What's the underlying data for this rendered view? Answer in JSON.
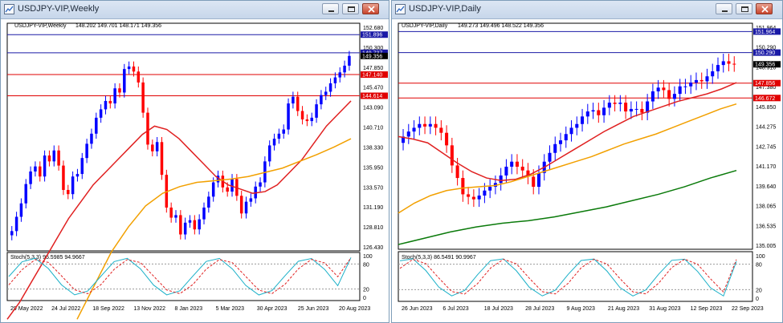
{
  "windows": [
    {
      "title": "USDJPY-VIP,Weekly",
      "info_symbol": "USDJPY-VIP,Weekly",
      "info_ohlc": "148.202 149.701 148.171 149.356",
      "stoch_label": "Stoch(5,3,3) 95.5985 94.9667",
      "price_ticks": [
        "152.680",
        "150.300",
        "147.850",
        "145.470",
        "143.090",
        "140.710",
        "138.330",
        "135.950",
        "133.570",
        "131.190",
        "128.810",
        "126.430"
      ],
      "price_min": 126.43,
      "price_max": 152.68,
      "stoch_ticks": [
        "100",
        "80",
        "20",
        "0"
      ],
      "date_ticks": [
        "29 May 2022",
        "24 Jul 2022",
        "18 Sep 2022",
        "13 Nov 2022",
        "8 Jan 2023",
        "5 Mar 2023",
        "30 Apr 2023",
        "25 Jun 2023",
        "20 Aug 2023"
      ],
      "levels": [
        {
          "value": 151.896,
          "label": "151.896",
          "color": "#1a1aa6"
        },
        {
          "value": 149.737,
          "label": "149.737",
          "color": "#1a1aa6"
        },
        {
          "value": 147.14,
          "label": "147.140",
          "color": "#e00000"
        },
        {
          "value": 144.614,
          "label": "144.614",
          "color": "#e00000"
        }
      ],
      "current_price": "149.356"
    },
    {
      "title": "USDJPY-VIP,Daily",
      "info_symbol": "USDJPY-VIP,Daily",
      "info_ohlc": "149.273 149.496 148.522 149.356",
      "stoch_label": "Stoch(5,3,3) 86.5491 90.9967",
      "price_ticks": [
        "151.964",
        "150.290",
        "148.910",
        "147.380",
        "145.850",
        "144.275",
        "142.745",
        "141.170",
        "139.640",
        "138.065",
        "136.535",
        "135.005"
      ],
      "price_min": 135.005,
      "price_max": 152.5,
      "stoch_ticks": [
        "100",
        "80",
        "20",
        "0"
      ],
      "date_ticks": [
        "26 Jun 2023",
        "6 Jul 2023",
        "18 Jul 2023",
        "28 Jul 2023",
        "9 Aug 2023",
        "21 Aug 2023",
        "31 Aug 2023",
        "12 Sep 2023",
        "22 Sep 2023"
      ],
      "levels": [
        {
          "value": 151.964,
          "label": "151.964",
          "color": "#1a1aa6"
        },
        {
          "value": 150.29,
          "label": "150.290",
          "color": "#1a1aa6"
        },
        {
          "value": 147.856,
          "label": "147.856",
          "color": "#e00000"
        },
        {
          "value": 146.672,
          "label": "146.672",
          "color": "#e00000"
        }
      ],
      "current_price": "149.356"
    }
  ],
  "chart_data": [
    {
      "type": "line",
      "symbol": "USDJPY-VIP",
      "timeframe": "Weekly",
      "candles_close": [
        128.5,
        130.2,
        131.8,
        134.1,
        135.6,
        136.2,
        135.0,
        137.5,
        136.8,
        138.1,
        136.3,
        133.4,
        132.9,
        135.0,
        135.3,
        137.2,
        138.9,
        140.1,
        142.0,
        143.0,
        144.0,
        143.7,
        145.5,
        145.0,
        147.8,
        148.1,
        147.5,
        146.2,
        142.6,
        138.8,
        138.0,
        139.1,
        135.2,
        131.3,
        130.1,
        130.4,
        128.1,
        129.5,
        129.8,
        128.7,
        129.9,
        131.3,
        132.6,
        134.3,
        135.1,
        133.7,
        133.2,
        134.7,
        132.7,
        130.6,
        132.0,
        132.4,
        133.8,
        134.3,
        136.8,
        138.7,
        139.5,
        140.1,
        140.6,
        143.7,
        144.5,
        142.8,
        141.8,
        141.6,
        142.0,
        143.6,
        144.7,
        145.1,
        146.1,
        146.8,
        147.4,
        148.2,
        149.36
      ],
      "ma_red_close": [
        118.0,
        120.0,
        122.5,
        125.0,
        127.5,
        130.0,
        132.0,
        134.0,
        135.5,
        137.0,
        138.5,
        140.0,
        141.0,
        140.6,
        139.5,
        138.0,
        136.5,
        135.0,
        134.0,
        133.5,
        133.0,
        133.2,
        134.0,
        135.5,
        137.0,
        139.0,
        141.0,
        142.5,
        144.0
      ],
      "ma_orange_close": [
        118.0,
        122.0,
        126.0,
        129.0,
        131.5,
        133.0,
        133.8,
        134.3,
        134.5,
        134.7,
        135.0,
        135.5,
        136.0,
        136.8,
        137.6,
        138.5,
        139.5
      ],
      "stoch_k_last": 95.5985,
      "stoch_d_last": 94.9667
    },
    {
      "type": "line",
      "symbol": "USDJPY-VIP",
      "timeframe": "Daily",
      "candles_close": [
        143.6,
        144.0,
        144.3,
        144.6,
        144.4,
        144.6,
        144.3,
        143.9,
        142.9,
        141.3,
        140.3,
        139.0,
        138.8,
        138.6,
        138.9,
        139.3,
        139.6,
        139.9,
        140.5,
        141.2,
        141.6,
        141.2,
        140.9,
        140.4,
        139.6,
        140.7,
        141.6,
        142.3,
        143.0,
        143.3,
        143.8,
        144.3,
        144.6,
        145.2,
        145.6,
        145.7,
        145.3,
        145.9,
        146.3,
        146.2,
        146.3,
        145.6,
        145.8,
        145.8,
        145.5,
        146.4,
        147.2,
        147.5,
        147.3,
        146.6,
        147.0,
        147.6,
        147.6,
        147.9,
        148.1,
        148.0,
        148.4,
        148.8,
        149.3,
        149.6,
        149.4,
        149.36
      ],
      "ma_red_close": [
        143.6,
        143.4,
        143.1,
        142.3,
        141.5,
        140.8,
        140.3,
        140.1,
        140.2,
        140.6,
        141.2,
        141.9,
        142.6,
        143.3,
        144.0,
        144.6,
        145.2,
        145.6,
        146.0,
        146.4,
        146.7,
        147.0,
        147.4,
        147.9
      ],
      "ma_orange_close": [
        137.5,
        138.3,
        138.9,
        139.3,
        139.5,
        139.6,
        139.7,
        140.0,
        140.4,
        140.8,
        141.2,
        141.6,
        142.0,
        142.5,
        143.0,
        143.4,
        143.8,
        144.3,
        144.8,
        145.3,
        145.8,
        146.2
      ],
      "ma_green_close": [
        135.0,
        135.5,
        136.0,
        136.4,
        136.7,
        136.9,
        137.2,
        137.6,
        138.0,
        138.5,
        139.0,
        139.6,
        140.3,
        140.9
      ],
      "stoch_k_last": 86.5491,
      "stoch_d_last": 90.9967
    }
  ],
  "colors": {
    "bull": "#0000ff",
    "bear": "#ff0000",
    "ma_red": "#e02020",
    "ma_orange": "#f2a000",
    "ma_green": "#0a7a0a",
    "stoch_main": "#1ab0c8",
    "stoch_signal": "#e02020"
  },
  "icons": {
    "window_icon": "chart-window-icon",
    "minimize": "minimize-icon",
    "maximize": "maximize-icon",
    "close": "close-icon"
  }
}
